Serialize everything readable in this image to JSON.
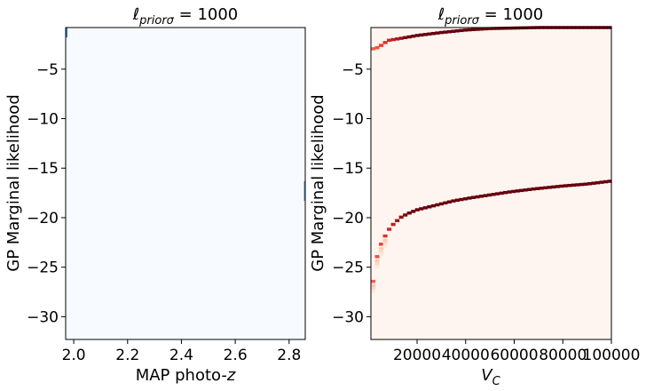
{
  "figure": {
    "background": "#ffffff"
  },
  "chart_data": [
    {
      "type": "heatmap",
      "title": "ℓ_priorσ = 1000",
      "title_main": "ℓ",
      "title_sub": "priorσ",
      "title_rest": " = 1000",
      "xlabel": "MAP photo-z",
      "xlabel_main": "MAP photo-",
      "xlabel_italic": "z",
      "ylabel": "GP Marginal likelihood",
      "xlim": [
        1.97,
        2.86
      ],
      "ylim": [
        -32.3,
        -0.8
      ],
      "xticks": [
        2.0,
        2.2,
        2.4,
        2.6,
        2.8
      ],
      "xtick_labels": [
        "2.0",
        "2.2",
        "2.4",
        "2.6",
        "2.8"
      ],
      "yticks": [
        -5,
        -10,
        -15,
        -20,
        -25,
        -30
      ],
      "ytick_labels": [
        "−5",
        "−10",
        "−15",
        "−20",
        "−25",
        "−30"
      ],
      "colormap": "Blues",
      "background_color": "#f7fbff",
      "cells": [
        {
          "x": [
            1.97,
            1.975
          ],
          "y": [
            -1.8,
            -0.8
          ],
          "level": 0.9
        },
        {
          "x": [
            2.855,
            2.86
          ],
          "y": [
            -18.3,
            -16.3
          ],
          "level": 0.7
        }
      ]
    },
    {
      "type": "heatmap",
      "title": "ℓ_priorσ = 1000",
      "title_main": "ℓ",
      "title_sub": "priorσ",
      "title_rest": " = 1000",
      "xlabel": "V_C",
      "xlabel_main": "V",
      "xlabel_sub": "C",
      "ylabel": "GP Marginal likelihood",
      "xlim": [
        1000,
        100000
      ],
      "ylim": [
        -32.3,
        -0.8
      ],
      "xticks": [
        20000,
        40000,
        60000,
        80000,
        100000
      ],
      "xtick_labels": [
        "20000",
        "40000",
        "60000",
        "80000",
        "100000"
      ],
      "yticks": [
        -5,
        -10,
        -15,
        -20,
        -25,
        -30
      ],
      "ytick_labels": [
        "−5",
        "−10",
        "−15",
        "−20",
        "−25",
        "−30"
      ],
      "colormap": "Reds",
      "background_color": "#fff5f0",
      "bands": [
        {
          "name": "upper",
          "points": [
            [
              1000,
              -3.0
            ],
            [
              4000,
              -2.8
            ],
            [
              8000,
              -2.1
            ],
            [
              13000,
              -1.9
            ],
            [
              20000,
              -1.6
            ],
            [
              30000,
              -1.3
            ],
            [
              40000,
              -1.05
            ],
            [
              50000,
              -0.9
            ],
            [
              60000,
              -0.85
            ],
            [
              70000,
              -0.8
            ],
            [
              85000,
              -0.8
            ],
            [
              100000,
              -0.8
            ]
          ]
        },
        {
          "name": "lower",
          "points": [
            [
              1000,
              -28.5
            ],
            [
              2000,
              -26.0
            ],
            [
              3000,
              -24.5
            ],
            [
              4000,
              -23.3
            ],
            [
              6000,
              -22.2
            ],
            [
              8000,
              -21.3
            ],
            [
              10000,
              -20.7
            ],
            [
              13000,
              -20.0
            ],
            [
              16000,
              -19.6
            ],
            [
              20000,
              -19.2
            ],
            [
              25000,
              -18.9
            ],
            [
              30000,
              -18.6
            ],
            [
              35000,
              -18.3
            ],
            [
              42000,
              -18.0
            ],
            [
              50000,
              -17.7
            ],
            [
              58000,
              -17.4
            ],
            [
              68000,
              -17.1
            ],
            [
              80000,
              -16.8
            ],
            [
              90000,
              -16.6
            ],
            [
              100000,
              -16.3
            ]
          ]
        }
      ]
    }
  ]
}
